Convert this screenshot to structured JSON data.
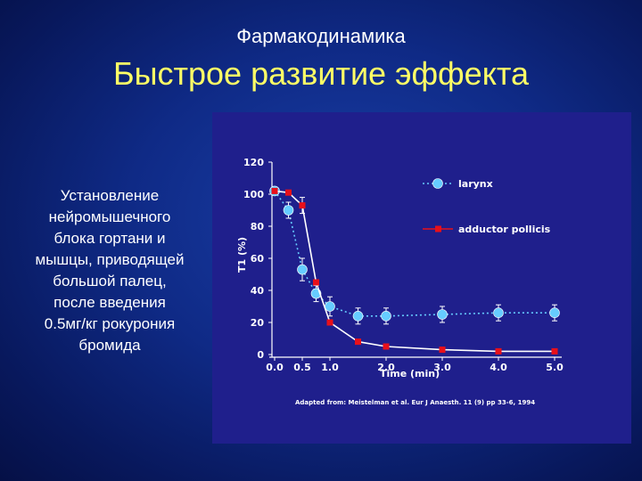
{
  "header": {
    "subtitle": "Фармакодинамика",
    "title": "Быстрое развитие эффекта"
  },
  "body_text": {
    "lines": [
      "Установление",
      "нейромышечного",
      "блока гортани  и",
      "мышцы, приводящей",
      "большой палец,",
      "после введения",
      "0.5мг/кг рокурония",
      "бромида"
    ]
  },
  "colors": {
    "title": "#ffff66",
    "figure_background": "#1f1f8c",
    "larynx": "#66ccff",
    "adductor_pollicis": "#e8101a"
  },
  "chart_data": {
    "type": "line",
    "xlabel": "Time (min)",
    "ylabel": "T1 (%)",
    "xlim": [
      0,
      5
    ],
    "ylim": [
      0,
      120
    ],
    "x_ticks": [
      "0.0",
      "0.5",
      "1.0",
      "2.0",
      "3.0",
      "4.0",
      "5.0"
    ],
    "y_ticks": [
      "0",
      "20",
      "40",
      "60",
      "80",
      "100",
      "120"
    ],
    "series": [
      {
        "name": "larynx",
        "color": "#66ccff",
        "style": "dotted",
        "x": [
          0.0,
          0.25,
          0.5,
          0.75,
          1.0,
          1.5,
          2.0,
          3.0,
          4.0,
          5.0
        ],
        "y": [
          102,
          90,
          53,
          38,
          30,
          24,
          24,
          25,
          26,
          26
        ],
        "err": [
          0,
          5,
          7,
          5,
          6,
          5,
          5,
          5,
          5,
          5
        ]
      },
      {
        "name": "adductor pollicis",
        "color": "#e8101a",
        "style": "solid",
        "x": [
          0.0,
          0.25,
          0.5,
          0.75,
          1.0,
          1.5,
          2.0,
          3.0,
          4.0,
          5.0
        ],
        "y": [
          102,
          101,
          93,
          45,
          20,
          8,
          5,
          3,
          2,
          2
        ],
        "err": [
          0,
          0,
          5,
          0,
          0,
          0,
          0,
          0,
          0,
          0
        ]
      }
    ],
    "legend": [
      "larynx",
      "adductor pollicis"
    ],
    "legend_position": "top-right",
    "annotation": "Adapted from: Meistelman et al. Eur J Anaesth. 11 (9) pp 33-6, 1994"
  }
}
